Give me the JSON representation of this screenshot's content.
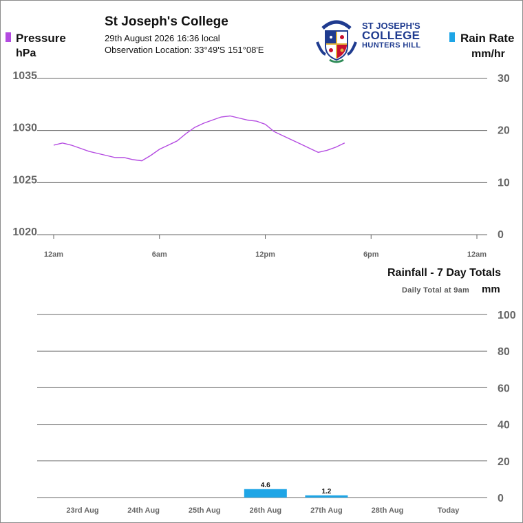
{
  "header": {
    "title": "St Joseph's College",
    "datetime": "29th August 2026  16:36 local",
    "location": "Observation Location: 33°49'S 151°08'E"
  },
  "logo": {
    "line1": "ST JOSEPH'S",
    "line2": "COLLEGE",
    "line3": "HUNTERS HILL",
    "colors": {
      "navy": "#1f3b8f",
      "red": "#c8102e",
      "gold": "#e0b43c",
      "green": "#2e8b57"
    }
  },
  "legend": {
    "pressure_label": "Pressure",
    "pressure_unit": "hPa",
    "pressure_color": "#b44be1",
    "rain_rate_label": "Rain Rate",
    "rain_rate_unit": "mm/hr",
    "rain_rate_color": "#1ea5e6"
  },
  "chart_data": [
    {
      "type": "line",
      "series": [
        {
          "name": "Pressure",
          "x": [
            0,
            0.5,
            1,
            1.5,
            2,
            2.5,
            3,
            3.5,
            4,
            4.5,
            5,
            5.5,
            6,
            6.5,
            7,
            7.5,
            8,
            8.5,
            9,
            9.5,
            10,
            10.5,
            11,
            11.5,
            12,
            12.5,
            13,
            13.5,
            14,
            14.5,
            15,
            15.5,
            16,
            16.5
          ],
          "values": [
            1028.6,
            1028.8,
            1028.6,
            1028.3,
            1028.0,
            1027.8,
            1027.6,
            1027.4,
            1027.4,
            1027.2,
            1027.1,
            1027.6,
            1028.2,
            1028.6,
            1029.0,
            1029.7,
            1030.3,
            1030.7,
            1031.0,
            1031.3,
            1031.4,
            1031.2,
            1031.0,
            1030.9,
            1030.6,
            1029.9,
            1029.5,
            1029.1,
            1028.7,
            1028.3,
            1027.9,
            1028.1,
            1028.4,
            1028.8
          ],
          "color": "#b44be1",
          "unit": "hPa"
        },
        {
          "name": "Rain Rate",
          "x": [],
          "values": [],
          "color": "#1ea5e6",
          "unit": "mm/hr"
        }
      ],
      "x_ticks": [
        "12am",
        "6am",
        "12pm",
        "6pm",
        "12am"
      ],
      "xlim": [
        0,
        24
      ],
      "ylim": [
        1020,
        1035
      ],
      "y_ticks": [
        "1020",
        "1025",
        "1030",
        "1035"
      ],
      "y2lim": [
        0,
        30
      ],
      "y2_ticks": [
        "0",
        "10",
        "20",
        "30"
      ],
      "grid": true
    },
    {
      "type": "bar",
      "title": "Rainfall - 7 Day Totals",
      "subtitle": "Daily Total at 9am",
      "ylabel": "mm",
      "categories": [
        "23rd Aug",
        "24th Aug",
        "25th Aug",
        "26th Aug",
        "27th Aug",
        "28th Aug",
        "Today"
      ],
      "values": [
        0,
        0,
        0,
        4.6,
        1.2,
        0,
        0
      ],
      "value_labels": [
        "",
        "",
        "",
        "4.6",
        "1.2",
        "",
        ""
      ],
      "ylim": [
        0,
        100
      ],
      "y_ticks": [
        "0",
        "20",
        "40",
        "60",
        "80",
        "100"
      ],
      "bar_color": "#1ea5e6",
      "grid": true
    }
  ]
}
